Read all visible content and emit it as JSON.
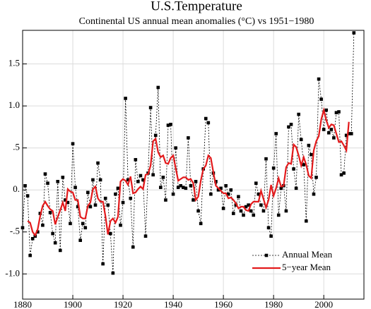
{
  "chart_data": {
    "type": "line",
    "title": "U.S.Temperature",
    "subtitle": "Continental US annual mean anomalies (°C) vs 1951−1980",
    "x": [
      1880,
      1881,
      1882,
      1883,
      1884,
      1885,
      1886,
      1887,
      1888,
      1889,
      1890,
      1891,
      1892,
      1893,
      1894,
      1895,
      1896,
      1897,
      1898,
      1899,
      1900,
      1901,
      1902,
      1903,
      1904,
      1905,
      1906,
      1907,
      1908,
      1909,
      1910,
      1911,
      1912,
      1913,
      1914,
      1915,
      1916,
      1917,
      1918,
      1919,
      1920,
      1921,
      1922,
      1923,
      1924,
      1925,
      1926,
      1927,
      1928,
      1929,
      1930,
      1931,
      1932,
      1933,
      1934,
      1935,
      1936,
      1937,
      1938,
      1939,
      1940,
      1941,
      1942,
      1943,
      1944,
      1945,
      1946,
      1947,
      1948,
      1949,
      1950,
      1951,
      1952,
      1953,
      1954,
      1955,
      1956,
      1957,
      1958,
      1959,
      1960,
      1961,
      1962,
      1963,
      1964,
      1965,
      1966,
      1967,
      1968,
      1969,
      1970,
      1971,
      1972,
      1973,
      1974,
      1975,
      1976,
      1977,
      1978,
      1979,
      1980,
      1981,
      1982,
      1983,
      1984,
      1985,
      1986,
      1987,
      1988,
      1989,
      1990,
      1991,
      1992,
      1993,
      1994,
      1995,
      1996,
      1997,
      1998,
      1999,
      2000,
      2001,
      2002,
      2003,
      2004,
      2005,
      2006,
      2007,
      2008,
      2009,
      2010,
      2011,
      2012
    ],
    "series": [
      {
        "name": "Annual Mean",
        "color": "#000000",
        "style": "dotted-markers",
        "values": [
          -0.45,
          0.05,
          -0.07,
          -0.78,
          -0.58,
          -0.55,
          -0.5,
          -0.28,
          -0.42,
          0.19,
          0.08,
          -0.27,
          -0.52,
          -0.63,
          0.1,
          -0.72,
          0.15,
          -0.12,
          -0.15,
          -0.4,
          0.55,
          0.03,
          -0.2,
          -0.6,
          -0.4,
          -0.45,
          -0.03,
          -0.2,
          0.12,
          -0.18,
          0.32,
          0.12,
          -0.88,
          -0.1,
          -0.18,
          -0.52,
          -0.99,
          -0.05,
          0.02,
          -0.42,
          -0.15,
          1.09,
          0.12,
          -0.1,
          -0.68,
          0.36,
          0.1,
          0.17,
          0.12,
          -0.55,
          0.2,
          0.98,
          0.18,
          0.65,
          1.22,
          0.03,
          0.15,
          -0.12,
          0.77,
          0.78,
          -0.05,
          0.5,
          0.03,
          0.05,
          0.03,
          0.02,
          0.62,
          0.05,
          -0.12,
          0.1,
          -0.25,
          -0.4,
          0.25,
          0.85,
          0.8,
          -0.05,
          0.2,
          0.1,
          0.0,
          0.02,
          -0.22,
          0.05,
          -0.05,
          0.0,
          -0.28,
          -0.18,
          -0.08,
          -0.25,
          -0.3,
          -0.2,
          -0.18,
          -0.25,
          -0.3,
          0.08,
          -0.05,
          -0.18,
          -0.25,
          0.37,
          -0.45,
          -0.55,
          0.26,
          0.67,
          -0.3,
          0.02,
          0.05,
          -0.25,
          0.75,
          0.78,
          0.25,
          0.02,
          0.9,
          0.6,
          0.3,
          -0.37,
          0.53,
          0.42,
          -0.05,
          0.15,
          1.32,
          1.08,
          0.72,
          0.95,
          0.68,
          0.72,
          0.62,
          0.92,
          0.93,
          0.18,
          0.2,
          0.65,
          0.67,
          0.67,
          1.87
        ]
      },
      {
        "name": "5−year Mean",
        "color": "#e31a1c",
        "style": "solid",
        "values": [
          null,
          null,
          -0.37,
          -0.39,
          -0.5,
          -0.54,
          -0.47,
          -0.31,
          -0.19,
          -0.14,
          -0.19,
          -0.23,
          -0.25,
          -0.41,
          -0.32,
          -0.24,
          -0.15,
          -0.25,
          0.01,
          -0.02,
          -0.03,
          -0.12,
          -0.12,
          -0.32,
          -0.34,
          -0.34,
          -0.19,
          -0.15,
          0.01,
          0.04,
          -0.1,
          -0.14,
          -0.14,
          -0.31,
          -0.53,
          -0.37,
          -0.34,
          -0.39,
          -0.32,
          0.1,
          0.13,
          0.11,
          0.06,
          0.16,
          -0.04,
          -0.03,
          0.01,
          0.04,
          0.01,
          0.18,
          0.19,
          0.29,
          0.58,
          0.61,
          0.45,
          0.39,
          0.41,
          0.32,
          0.31,
          0.38,
          0.41,
          0.26,
          0.11,
          0.13,
          0.15,
          0.15,
          0.12,
          0.13,
          0.08,
          -0.12,
          -0.08,
          0.11,
          0.25,
          0.29,
          0.41,
          0.38,
          0.21,
          0.05,
          0.02,
          -0.01,
          -0.04,
          -0.04,
          -0.1,
          -0.09,
          -0.12,
          -0.16,
          -0.22,
          -0.2,
          -0.2,
          -0.24,
          -0.25,
          -0.17,
          -0.14,
          -0.14,
          -0.14,
          -0.01,
          -0.11,
          -0.21,
          -0.12,
          0.06,
          -0.07,
          0.02,
          0.14,
          0.04,
          0.05,
          0.27,
          0.32,
          0.31,
          0.54,
          0.51,
          0.41,
          0.29,
          0.39,
          0.3,
          0.17,
          0.14,
          0.47,
          0.58,
          0.64,
          0.84,
          0.95,
          0.83,
          0.74,
          0.78,
          0.77,
          0.67,
          0.57,
          0.58,
          0.53,
          0.47,
          0.81,
          null,
          null
        ]
      }
    ],
    "xlim": [
      1880,
      2016
    ],
    "xticks": [
      1880,
      1900,
      1920,
      1940,
      1960,
      1980,
      2000
    ],
    "ylim": [
      -1.3,
      1.9
    ],
    "yticks": [
      {
        "value": -1.0,
        "label": "-1.0"
      },
      {
        "value": -0.5,
        "label": "-.5"
      },
      {
        "value": 0,
        "label": "0."
      },
      {
        "value": 0.5,
        "label": ".5"
      },
      {
        "value": 1.0,
        "label": "1.0"
      },
      1.5
    ],
    "grid": true,
    "legend": "lower right"
  }
}
